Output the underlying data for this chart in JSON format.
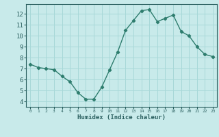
{
  "x": [
    0,
    1,
    2,
    3,
    4,
    5,
    6,
    7,
    8,
    9,
    10,
    11,
    12,
    13,
    14,
    15,
    16,
    17,
    18,
    19,
    20,
    21,
    22,
    23
  ],
  "y": [
    7.4,
    7.1,
    7.0,
    6.9,
    6.3,
    5.8,
    4.8,
    4.2,
    4.2,
    5.3,
    6.9,
    8.5,
    10.5,
    11.4,
    12.3,
    12.4,
    11.3,
    11.6,
    11.9,
    10.4,
    10.0,
    9.0,
    8.3,
    8.1
  ],
  "xlabel": "Humidex (Indice chaleur)",
  "line_color": "#2e7d6e",
  "bg_color": "#c8eaea",
  "grid_color": "#a8d8d8",
  "ylim": [
    3.5,
    12.9
  ],
  "xlim": [
    -0.5,
    23.5
  ],
  "yticks": [
    4,
    5,
    6,
    7,
    8,
    9,
    10,
    11,
    12
  ],
  "xticks": [
    0,
    1,
    2,
    3,
    4,
    5,
    6,
    7,
    8,
    9,
    10,
    11,
    12,
    13,
    14,
    15,
    16,
    17,
    18,
    19,
    20,
    21,
    22,
    23
  ],
  "marker": "D",
  "marker_size": 2.2,
  "line_width": 1.0
}
